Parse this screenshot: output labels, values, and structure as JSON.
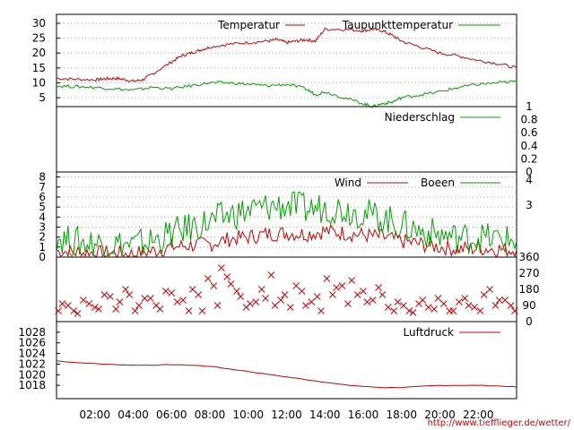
{
  "colors": {
    "red": "#cc0000",
    "green": "#00a000",
    "grid": "#a0a0a0"
  },
  "source_url": "http://www.tiefflieger.de/wetter/",
  "chart_data": [
    {
      "type": "line",
      "panel": "temperature",
      "ylim": [
        2,
        33
      ],
      "yticks": [
        5,
        10,
        15,
        20,
        25,
        30
      ],
      "grid": true,
      "legend": "top",
      "series": [
        {
          "name": "Temperatur",
          "color": "#cc0000",
          "x": [
            0,
            1,
            2,
            2.5,
            3,
            3.5,
            4,
            4.5,
            5,
            6,
            6.5,
            7,
            7.5,
            8,
            9,
            10,
            11,
            11.5,
            12,
            12.5,
            13,
            13.5,
            14,
            15,
            16,
            16.5,
            17,
            17.5,
            18,
            19,
            20,
            21,
            22,
            23,
            24
          ],
          "values": [
            11.5,
            11.2,
            11,
            11.3,
            11.5,
            11.2,
            10.5,
            11,
            13,
            17,
            19,
            20,
            21,
            22,
            23,
            23.5,
            24,
            24.5,
            23.5,
            24,
            24.5,
            24,
            28,
            28,
            27.5,
            28,
            27.5,
            26,
            24,
            22,
            20,
            19,
            17.5,
            16.5,
            15
          ]
        },
        {
          "name": "Taupunkttemperatur",
          "color": "#00a000",
          "x": [
            0,
            1,
            2,
            3,
            4,
            5,
            6,
            7,
            8,
            9,
            10,
            11,
            12,
            13,
            13.5,
            14,
            15,
            16,
            16.5,
            17,
            17.5,
            18,
            19,
            20,
            21,
            22,
            23,
            24
          ],
          "values": [
            9,
            8.7,
            8.5,
            8,
            7.5,
            8.5,
            8,
            9,
            10,
            10,
            9.5,
            9,
            9.5,
            8,
            6,
            7,
            5,
            3,
            2,
            3,
            3.5,
            5,
            6,
            7,
            8.5,
            9.5,
            10,
            10.5
          ]
        }
      ]
    },
    {
      "type": "line",
      "panel": "precipitation",
      "ylim": [
        0,
        1
      ],
      "yticks_right": [
        "0",
        "0.2",
        "0.4",
        "0.6",
        "0.8",
        "1"
      ],
      "grid": false,
      "legend": "top-right",
      "series": [
        {
          "name": "Niederschlag",
          "color": "#00a000",
          "values": []
        }
      ]
    },
    {
      "type": "line",
      "panel": "wind",
      "ylim": [
        0,
        8.5
      ],
      "yticks": [
        0,
        1,
        2,
        3,
        4,
        5,
        6,
        7,
        8
      ],
      "yticks_right": [
        "3",
        "4"
      ],
      "grid": true,
      "legend": "top",
      "series": [
        {
          "name": "Wind",
          "color": "#cc0000",
          "x": [
            0,
            1,
            2,
            3,
            4,
            5,
            6,
            7,
            8,
            9,
            10,
            11,
            12,
            13,
            14,
            15,
            16,
            17,
            18,
            19,
            20,
            21,
            22,
            23,
            24
          ],
          "values": [
            0.6,
            0.5,
            0.4,
            0.4,
            0.3,
            0.6,
            1.0,
            1.2,
            1.3,
            1.8,
            2.0,
            2.3,
            2.4,
            2.3,
            2.6,
            2.4,
            2.2,
            2.0,
            1.6,
            1.3,
            1.0,
            0.8,
            0.9,
            0.8,
            0.7
          ]
        },
        {
          "name": "Boeen",
          "color": "#00a000",
          "x": [
            0,
            1,
            2,
            3,
            4,
            5,
            6,
            7,
            8,
            9,
            10,
            11,
            12,
            13,
            14,
            15,
            16,
            17,
            18,
            19,
            20,
            21,
            22,
            23,
            24
          ],
          "values": [
            2.0,
            1.5,
            1.4,
            1.3,
            1.2,
            1.6,
            2.3,
            3.0,
            3.5,
            4.2,
            4.6,
            5.0,
            5.2,
            4.8,
            5.0,
            4.8,
            4.4,
            3.9,
            3.2,
            2.6,
            2.2,
            1.9,
            2.0,
            1.8,
            1.6
          ]
        }
      ]
    },
    {
      "type": "scatter",
      "panel": "wind_direction",
      "ylim": [
        0,
        360
      ],
      "yticks_right": [
        "0",
        "90",
        "180",
        "270",
        "360"
      ],
      "grid": false,
      "series": [
        {
          "name": "",
          "color": "#cc0000",
          "x": [
            0.1,
            0.6,
            1.1,
            1.7,
            2.2,
            2.8,
            3.3,
            3.8,
            4.3,
            4.9,
            5.4,
            6.0,
            6.6,
            7.1,
            7.6,
            8.2,
            8.6,
            9.1,
            9.6,
            10.1,
            10.7,
            11.2,
            11.7,
            12.2,
            12.8,
            13.3,
            13.8,
            14.4,
            14.9,
            15.4,
            16.0,
            16.5,
            17.0,
            17.6,
            18.1,
            18.6,
            19.1,
            19.7,
            20.2,
            20.7,
            21.3,
            21.8,
            22.3,
            22.9,
            23.4,
            23.9
          ],
          "values": [
            60,
            90,
            45,
            100,
            70,
            140,
            110,
            150,
            90,
            130,
            70,
            160,
            120,
            180,
            60,
            200,
            300,
            210,
            140,
            100,
            180,
            260,
            120,
            80,
            170,
            110,
            60,
            150,
            200,
            230,
            170,
            120,
            150,
            60,
            90,
            50,
            120,
            70,
            100,
            60,
            130,
            80,
            150,
            90,
            120,
            60
          ]
        },
        {
          "name": "",
          "color": "#cc0000",
          "x": [
            0.3,
            0.9,
            1.4,
            2.0,
            2.5,
            3.1,
            3.6,
            4.1,
            4.6,
            5.2,
            5.7,
            6.3,
            6.9,
            7.4,
            7.9,
            8.4,
            8.9,
            9.4,
            9.9,
            10.4,
            10.9,
            11.4,
            11.9,
            12.5,
            13.0,
            13.6,
            14.1,
            14.6,
            15.2,
            15.7,
            16.2,
            16.8,
            17.3,
            17.8,
            18.4,
            18.9,
            19.4,
            19.9,
            20.5,
            21.0,
            21.5,
            22.1,
            22.6,
            23.1,
            23.7
          ],
          "values": [
            100,
            60,
            120,
            80,
            150,
            70,
            180,
            60,
            130,
            90,
            170,
            110,
            60,
            150,
            240,
            90,
            250,
            170,
            80,
            110,
            130,
            90,
            150,
            200,
            90,
            140,
            240,
            190,
            100,
            150,
            110,
            190,
            80,
            110,
            60,
            100,
            80,
            130,
            60,
            110,
            90,
            60,
            180,
            120,
            90
          ]
        }
      ]
    },
    {
      "type": "line",
      "panel": "pressure",
      "ylim": [
        1015.5,
        1030
      ],
      "yticks": [
        1018,
        1020,
        1022,
        1024,
        1026,
        1028
      ],
      "xlim": [
        0,
        24
      ],
      "xticks": [
        "02:00",
        "04:00",
        "06:00",
        "08:00",
        "10:00",
        "12:00",
        "14:00",
        "16:00",
        "18:00",
        "20:00",
        "22:00"
      ],
      "grid": false,
      "legend": "top-right",
      "series": [
        {
          "name": "Luftdruck",
          "color": "#cc0000",
          "x": [
            0,
            1,
            2,
            3,
            4,
            5,
            6,
            7,
            8,
            9,
            10,
            11,
            12,
            13,
            14,
            15,
            16,
            17,
            18,
            19,
            20,
            21,
            22,
            23,
            24
          ],
          "values": [
            1022.6,
            1022.3,
            1022.1,
            1021.9,
            1021.8,
            1021.8,
            1021.9,
            1021.8,
            1021.6,
            1021.1,
            1020.6,
            1020.1,
            1019.6,
            1019.1,
            1018.6,
            1018.1,
            1017.8,
            1017.6,
            1017.6,
            1017.8,
            1018.0,
            1018.0,
            1018.0,
            1017.9,
            1017.7
          ]
        }
      ]
    }
  ]
}
